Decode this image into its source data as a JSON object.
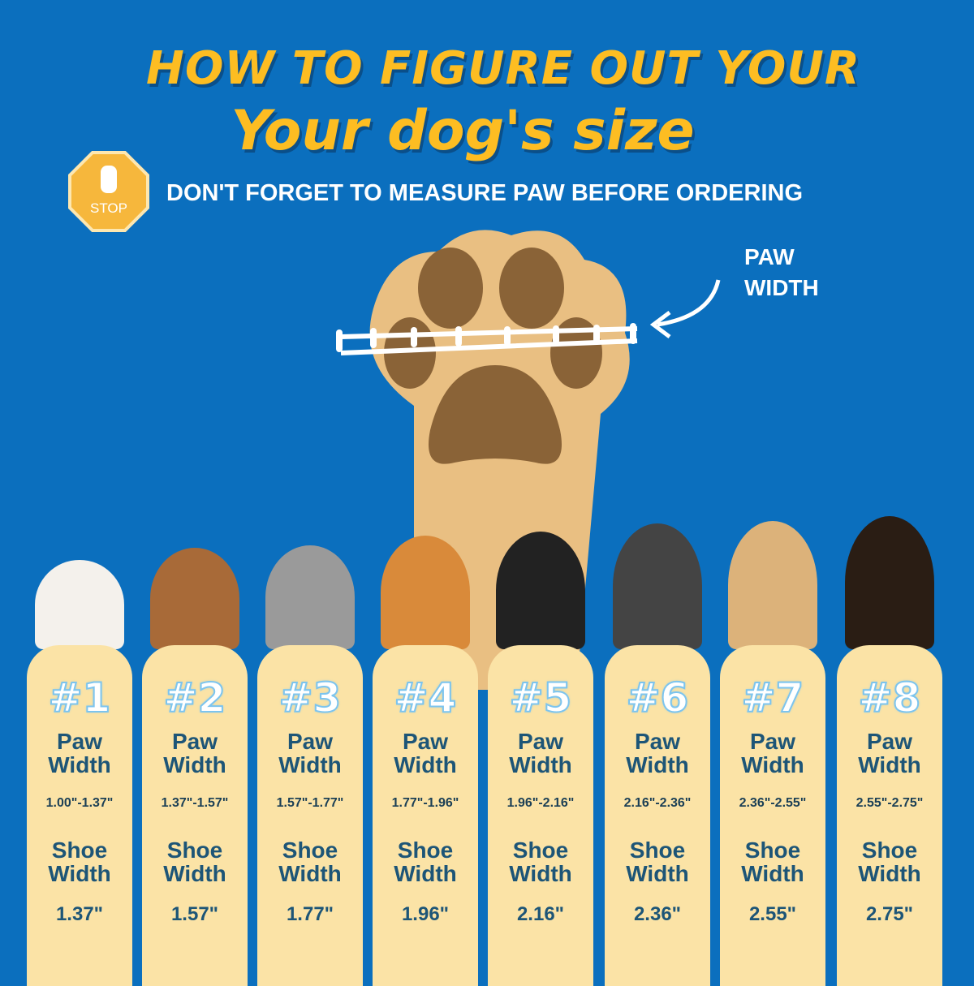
{
  "header": {
    "title_line1": "HOW TO FIGURE OUT YOUR",
    "title_line2": "Your dog's size",
    "stop_sign": "STOP",
    "subtitle": "DON'T FORGET TO MEASURE PAW BEFORE ORDERING"
  },
  "diagram": {
    "paw_label_line1": "PAW",
    "paw_label_line2": "WIDTH"
  },
  "colors": {
    "background": "#0b6fbe",
    "title": "#fdbd22",
    "card": "#fbe3a6",
    "card_text": "#1d5577"
  },
  "sizes": [
    {
      "number": "#1",
      "paw_label_1": "Paw",
      "paw_label_2": "Width",
      "paw_range": "1.00\"-1.37\"",
      "shoe_label_1": "Shoe",
      "shoe_label_2": "Width",
      "shoe_width": "1.37\""
    },
    {
      "number": "#2",
      "paw_label_1": "Paw",
      "paw_label_2": "Width",
      "paw_range": "1.37\"-1.57\"",
      "shoe_label_1": "Shoe",
      "shoe_label_2": "Width",
      "shoe_width": "1.57\""
    },
    {
      "number": "#3",
      "paw_label_1": "Paw",
      "paw_label_2": "Width",
      "paw_range": "1.57\"-1.77\"",
      "shoe_label_1": "Shoe",
      "shoe_label_2": "Width",
      "shoe_width": "1.77\""
    },
    {
      "number": "#4",
      "paw_label_1": "Paw",
      "paw_label_2": "Width",
      "paw_range": "1.77\"-1.96\"",
      "shoe_label_1": "Shoe",
      "shoe_label_2": "Width",
      "shoe_width": "1.96\""
    },
    {
      "number": "#5",
      "paw_label_1": "Paw",
      "paw_label_2": "Width",
      "paw_range": "1.96\"-2.16\"",
      "shoe_label_1": "Shoe",
      "shoe_label_2": "Width",
      "shoe_width": "2.16\""
    },
    {
      "number": "#6",
      "paw_label_1": "Paw",
      "paw_label_2": "Width",
      "paw_range": "2.16\"-2.36\"",
      "shoe_label_1": "Shoe",
      "shoe_label_2": "Width",
      "shoe_width": "2.36\""
    },
    {
      "number": "#7",
      "paw_label_1": "Paw",
      "paw_label_2": "Width",
      "paw_range": "2.36\"-2.55\"",
      "shoe_label_1": "Shoe",
      "shoe_label_2": "Width",
      "shoe_width": "2.55\""
    },
    {
      "number": "#8",
      "paw_label_1": "Paw",
      "paw_label_2": "Width",
      "paw_range": "2.55\"-2.75\"",
      "shoe_label_1": "Shoe",
      "shoe_label_2": "Width",
      "shoe_width": "2.75\""
    }
  ]
}
